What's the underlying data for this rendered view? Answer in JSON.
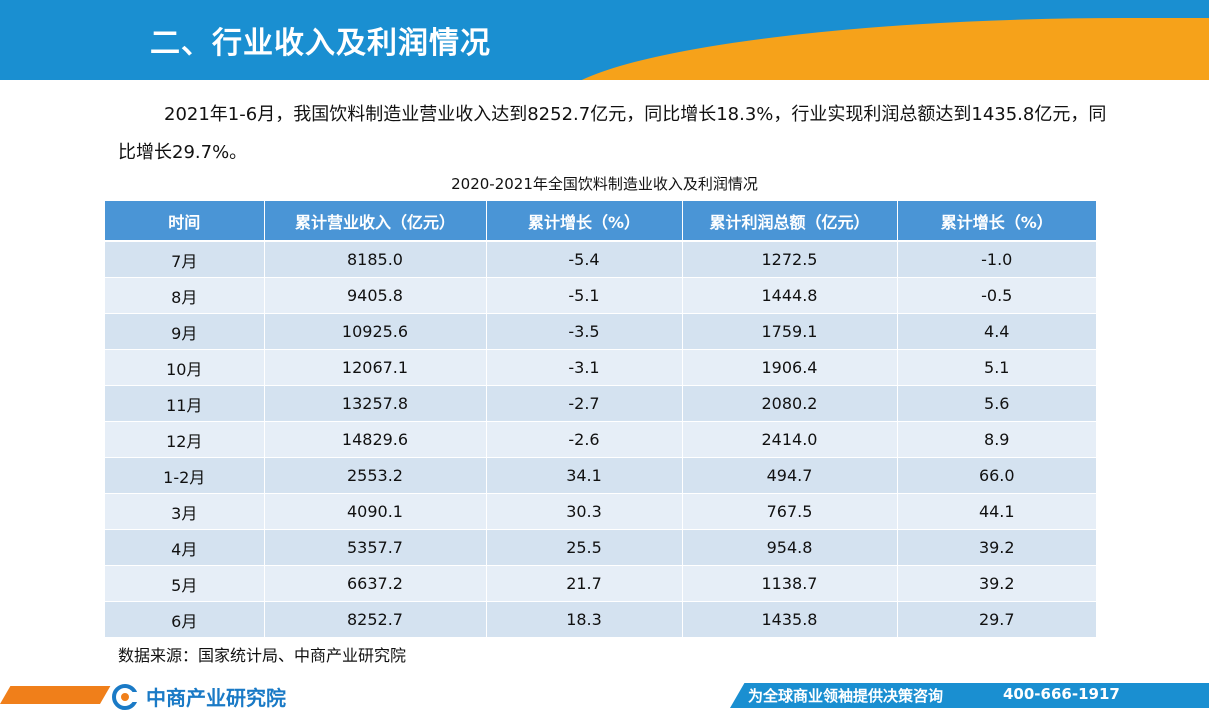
{
  "header": {
    "title": "二、行业收入及利润情况"
  },
  "intro": {
    "text": "2021年1-6月，我国饮料制造业营业收入达到8252.7亿元，同比增长18.3%，行业实现利润总额达到1435.8亿元，同比增长29.7%。"
  },
  "table": {
    "caption": "2020-2021年全国饮料制造业收入及利润情况",
    "headers": [
      "时间",
      "累计营业收入（亿元）",
      "累计增长（%）",
      "累计利润总额（亿元）",
      "累计增长（%）"
    ],
    "rows": [
      [
        "7月",
        "8185.0",
        "-5.4",
        "1272.5",
        "-1.0"
      ],
      [
        "8月",
        "9405.8",
        "-5.1",
        "1444.8",
        "-0.5"
      ],
      [
        "9月",
        "10925.6",
        "-3.5",
        "1759.1",
        "4.4"
      ],
      [
        "10月",
        "12067.1",
        "-3.1",
        "1906.4",
        "5.1"
      ],
      [
        "11月",
        "13257.8",
        "-2.7",
        "2080.2",
        "5.6"
      ],
      [
        "12月",
        "14829.6",
        "-2.6",
        "2414.0",
        "8.9"
      ],
      [
        "1-2月",
        "2553.2",
        "34.1",
        "494.7",
        "66.0"
      ],
      [
        "3月",
        "4090.1",
        "30.3",
        "767.5",
        "44.1"
      ],
      [
        "4月",
        "5357.7",
        "25.5",
        "954.8",
        "39.2"
      ],
      [
        "5月",
        "6637.2",
        "21.7",
        "1138.7",
        "39.2"
      ],
      [
        "6月",
        "8252.7",
        "18.3",
        "1435.8",
        "29.7"
      ]
    ]
  },
  "source": {
    "text": "数据来源：国家统计局、中商产业研究院"
  },
  "footer": {
    "logo_text": "中商产业研究院",
    "slogan": "为全球商业领袖提供决策咨询",
    "phone": "400-666-1917"
  },
  "colors": {
    "header_blue": "#1a8fd1",
    "header_orange": "#f6a21a",
    "table_header": "#4a95d6",
    "table_row": "#d4e2f0",
    "footer_orange": "#f07f1a"
  },
  "icons": {
    "logo": "zhongshang-logo-icon"
  }
}
